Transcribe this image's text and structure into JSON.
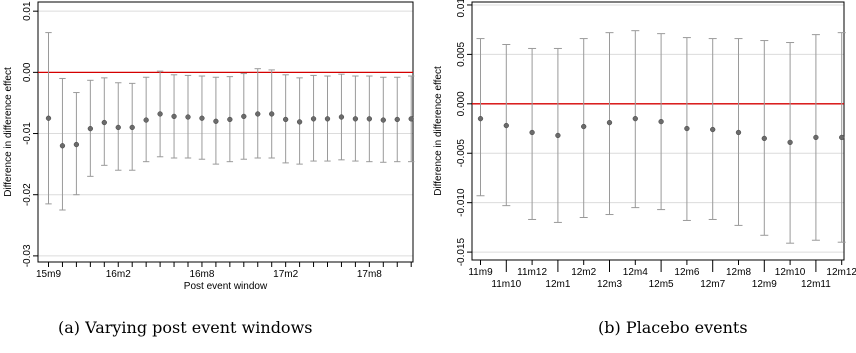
{
  "colors": {
    "errorbar": "#9a9a9a",
    "point": "#6b6b6b",
    "zero_line": "#d40000",
    "grid": "#dcdcdc"
  },
  "panel_a": {
    "caption": "(a) Varying post event windows"
  },
  "panel_b": {
    "caption": "(b) Placebo events"
  },
  "chart_data": [
    {
      "type": "scatter",
      "title": "",
      "xlabel": "Post event window",
      "ylabel": "Difference in difference effect",
      "ylim": [
        -0.031,
        0.0115
      ],
      "yticks": [
        -0.03,
        -0.02,
        -0.01,
        0.0,
        0.01
      ],
      "ytick_labels": [
        "-0.03",
        "-0.02",
        "-0.01",
        "0.00",
        "0.01"
      ],
      "grid": true,
      "reference_line": 0,
      "x_labels": [
        "15m9",
        "16m2",
        "16m8",
        "17m2",
        "17m8"
      ],
      "x_label_positions": [
        0,
        5,
        11,
        17,
        23
      ],
      "series": [
        {
          "estimate": [
            -0.0075,
            -0.012,
            -0.0118,
            -0.0092,
            -0.0082,
            -0.009,
            -0.009,
            -0.0078,
            -0.0068,
            -0.0072,
            -0.0073,
            -0.0075,
            -0.008,
            -0.0077,
            -0.0072,
            -0.0068,
            -0.0068,
            -0.0077,
            -0.0081,
            -0.0076,
            -0.0076,
            -0.0073,
            -0.0076,
            -0.0076,
            -0.0078,
            -0.0077,
            -0.0076
          ],
          "ci_low": [
            -0.0215,
            -0.0225,
            -0.02,
            -0.017,
            -0.0152,
            -0.016,
            -0.016,
            -0.0146,
            -0.0138,
            -0.014,
            -0.014,
            -0.0142,
            -0.015,
            -0.0146,
            -0.0142,
            -0.014,
            -0.014,
            -0.0148,
            -0.015,
            -0.0145,
            -0.0145,
            -0.0143,
            -0.0145,
            -0.0146,
            -0.0147,
            -0.0146,
            -0.0146
          ],
          "ci_high": [
            0.0065,
            -0.001,
            -0.0033,
            -0.0013,
            -0.0009,
            -0.0017,
            -0.0018,
            -0.0008,
            0.0002,
            -0.0004,
            -0.0005,
            -0.0006,
            -0.0008,
            -0.0007,
            -0.0002,
            0.0006,
            0.0004,
            -0.0004,
            -0.0009,
            -0.0005,
            -0.0006,
            -0.0003,
            -0.0006,
            -0.0006,
            -0.0008,
            -0.0008,
            -0.0006
          ]
        }
      ]
    },
    {
      "type": "scatter",
      "title": "",
      "xlabel": "",
      "ylabel": "Difference in difference effect",
      "ylim": [
        -0.0158,
        0.0103
      ],
      "yticks": [
        -0.015,
        -0.01,
        -0.005,
        0.0,
        0.005,
        0.01
      ],
      "ytick_labels": [
        "-0.015",
        "-0.010",
        "-0.005",
        "0.000",
        "0.005",
        "0.010"
      ],
      "grid": true,
      "reference_line": 0,
      "categories": [
        "11m9",
        "11m10",
        "11m12",
        "12m1",
        "12m2",
        "12m3",
        "12m4",
        "12m5",
        "12m6",
        "12m7",
        "12m8",
        "12m9",
        "12m10",
        "12m11",
        "12m12"
      ],
      "series": [
        {
          "estimate": [
            -0.0015,
            -0.0022,
            -0.0029,
            -0.0032,
            -0.0023,
            -0.0019,
            -0.0015,
            -0.0018,
            -0.0025,
            -0.0026,
            -0.0029,
            -0.0035,
            -0.0039,
            -0.0034,
            -0.0034
          ],
          "ci_low": [
            -0.0093,
            -0.0103,
            -0.0117,
            -0.012,
            -0.0115,
            -0.0112,
            -0.0105,
            -0.0107,
            -0.0118,
            -0.0117,
            -0.0123,
            -0.0133,
            -0.0141,
            -0.0138,
            -0.014
          ],
          "ci_high": [
            0.0066,
            0.006,
            0.0056,
            0.0056,
            0.0066,
            0.0072,
            0.0074,
            0.0071,
            0.0067,
            0.0066,
            0.0066,
            0.0064,
            0.0062,
            0.007,
            0.0072
          ]
        }
      ]
    }
  ]
}
